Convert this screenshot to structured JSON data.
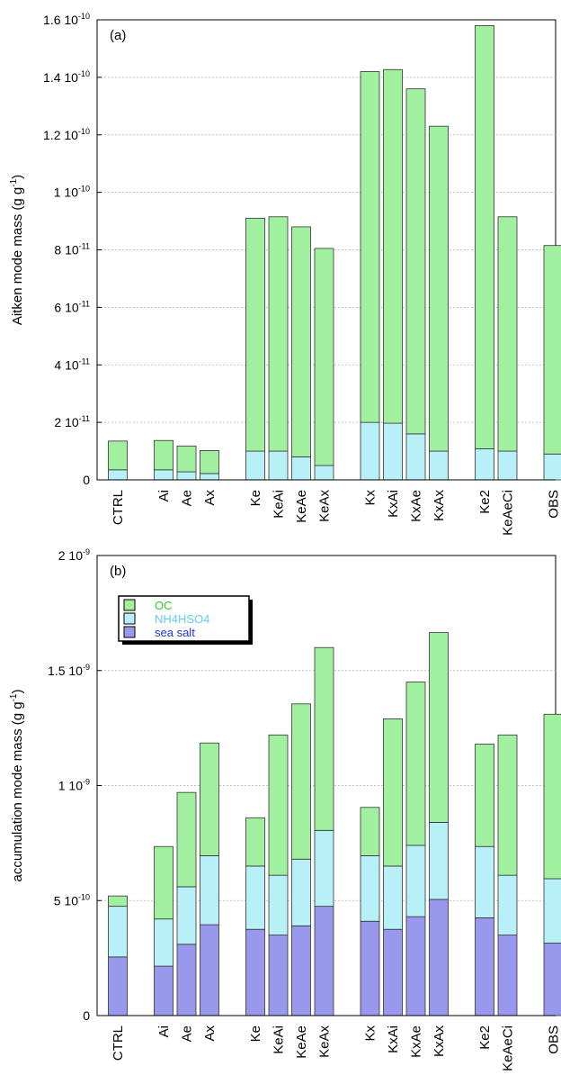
{
  "chart_data": [
    {
      "type": "bar",
      "stacked": true,
      "panel_label": "(a)",
      "ylabel_main": "Aitken mode mass (g g",
      "ylabel_sup": "-1",
      "ylabel_close": ")",
      "ylim": [
        0,
        1.6e-10
      ],
      "yticks": [
        {
          "value": 0,
          "mant": "0",
          "exp": ""
        },
        {
          "value": 2e-11,
          "mant": "2 10",
          "exp": "-11"
        },
        {
          "value": 4e-11,
          "mant": "4 10",
          "exp": "-11"
        },
        {
          "value": 6e-11,
          "mant": "6 10",
          "exp": "-11"
        },
        {
          "value": 8e-11,
          "mant": "8 10",
          "exp": "-11"
        },
        {
          "value": 1e-10,
          "mant": "1 10",
          "exp": "-10"
        },
        {
          "value": 1.2e-10,
          "mant": "1.2 10",
          "exp": "-10"
        },
        {
          "value": 1.4e-10,
          "mant": "1.4 10",
          "exp": "-10"
        },
        {
          "value": 1.6e-10,
          "mant": "1.6 10",
          "exp": "-10"
        }
      ],
      "grid": true,
      "categories": [
        "CTRL",
        "",
        "Ai",
        "Ae",
        "Ax",
        "",
        "Ke",
        "KeAi",
        "KeAe",
        "KeAx",
        "",
        "Kx",
        "KxAi",
        "KxAe",
        "KxAx",
        "",
        "Ke2",
        "KeAeCi",
        "",
        "OBS"
      ],
      "series": [
        {
          "name": "NH4HSO4",
          "color": "#b8f0f8",
          "values": [
            3.5e-12,
            null,
            3.5e-12,
            2.8e-12,
            2.2e-12,
            null,
            1e-11,
            1e-11,
            8e-12,
            5e-12,
            null,
            2e-11,
            1.97e-11,
            1.6e-11,
            1e-11,
            null,
            1.08e-11,
            1e-11,
            null,
            9e-12
          ]
        },
        {
          "name": "OC",
          "color": "#a0f0a0",
          "values": [
            1e-11,
            null,
            1.02e-11,
            9e-12,
            8e-12,
            null,
            8.1e-11,
            8.15e-11,
            8e-11,
            7.55e-11,
            null,
            1.22e-10,
            1.23e-10,
            1.2e-10,
            1.13e-10,
            null,
            1.472e-10,
            8.15e-11,
            null,
            7.25e-11
          ]
        }
      ]
    },
    {
      "type": "bar",
      "stacked": true,
      "panel_label": "(b)",
      "ylabel_main": "accumulation mode mass (g g",
      "ylabel_sup": "-1",
      "ylabel_close": ")",
      "ylim": [
        0,
        2e-09
      ],
      "yticks": [
        {
          "value": 0,
          "mant": "0",
          "exp": ""
        },
        {
          "value": 5e-10,
          "mant": "5 10",
          "exp": "-10"
        },
        {
          "value": 1e-09,
          "mant": "1 10",
          "exp": "-9"
        },
        {
          "value": 1.5e-09,
          "mant": "1.5 10",
          "exp": "-9"
        },
        {
          "value": 2e-09,
          "mant": "2 10",
          "exp": "-9"
        }
      ],
      "grid": true,
      "legend_position": "top-left",
      "legend": [
        {
          "label": "OC",
          "color": "#a0f0a0",
          "text_color": "#33cc33"
        },
        {
          "label": "NH4HSO4",
          "color": "#b8f0f8",
          "text_color": "#66ccee"
        },
        {
          "label": "sea salt",
          "color": "#9898ec",
          "text_color": "#2233cc"
        }
      ],
      "categories": [
        "CTRL",
        "",
        "Ai",
        "Ae",
        "Ax",
        "",
        "Ke",
        "KeAi",
        "KeAe",
        "KeAx",
        "",
        "Kx",
        "KxAi",
        "KxAe",
        "KxAx",
        "",
        "Ke2",
        "KeAeCi",
        "",
        "OBS"
      ],
      "series": [
        {
          "name": "sea salt",
          "color": "#9898ec",
          "values": [
            2.55e-10,
            null,
            2.15e-10,
            3.1e-10,
            3.95e-10,
            null,
            3.75e-10,
            3.5e-10,
            3.9e-10,
            4.75e-10,
            null,
            4.1e-10,
            3.75e-10,
            4.3e-10,
            5.05e-10,
            null,
            4.25e-10,
            3.5e-10,
            null,
            3.15e-10
          ]
        },
        {
          "name": "NH4HSO4",
          "color": "#b8f0f8",
          "values": [
            2.2e-10,
            null,
            2.05e-10,
            2.5e-10,
            3e-10,
            null,
            2.75e-10,
            2.6e-10,
            2.9e-10,
            3.3e-10,
            null,
            2.85e-10,
            2.75e-10,
            3.1e-10,
            3.35e-10,
            null,
            3.1e-10,
            2.6e-10,
            null,
            2.8e-10
          ]
        },
        {
          "name": "OC",
          "color": "#a0f0a0",
          "values": [
            4.5e-11,
            null,
            3.15e-10,
            4.1e-10,
            4.9e-10,
            null,
            2.1e-10,
            6.1e-10,
            6.75e-10,
            7.95e-10,
            null,
            2.1e-10,
            6.4e-10,
            7.1e-10,
            8.25e-10,
            null,
            4.45e-10,
            6.1e-10,
            null,
            7.15e-10
          ]
        }
      ]
    }
  ]
}
